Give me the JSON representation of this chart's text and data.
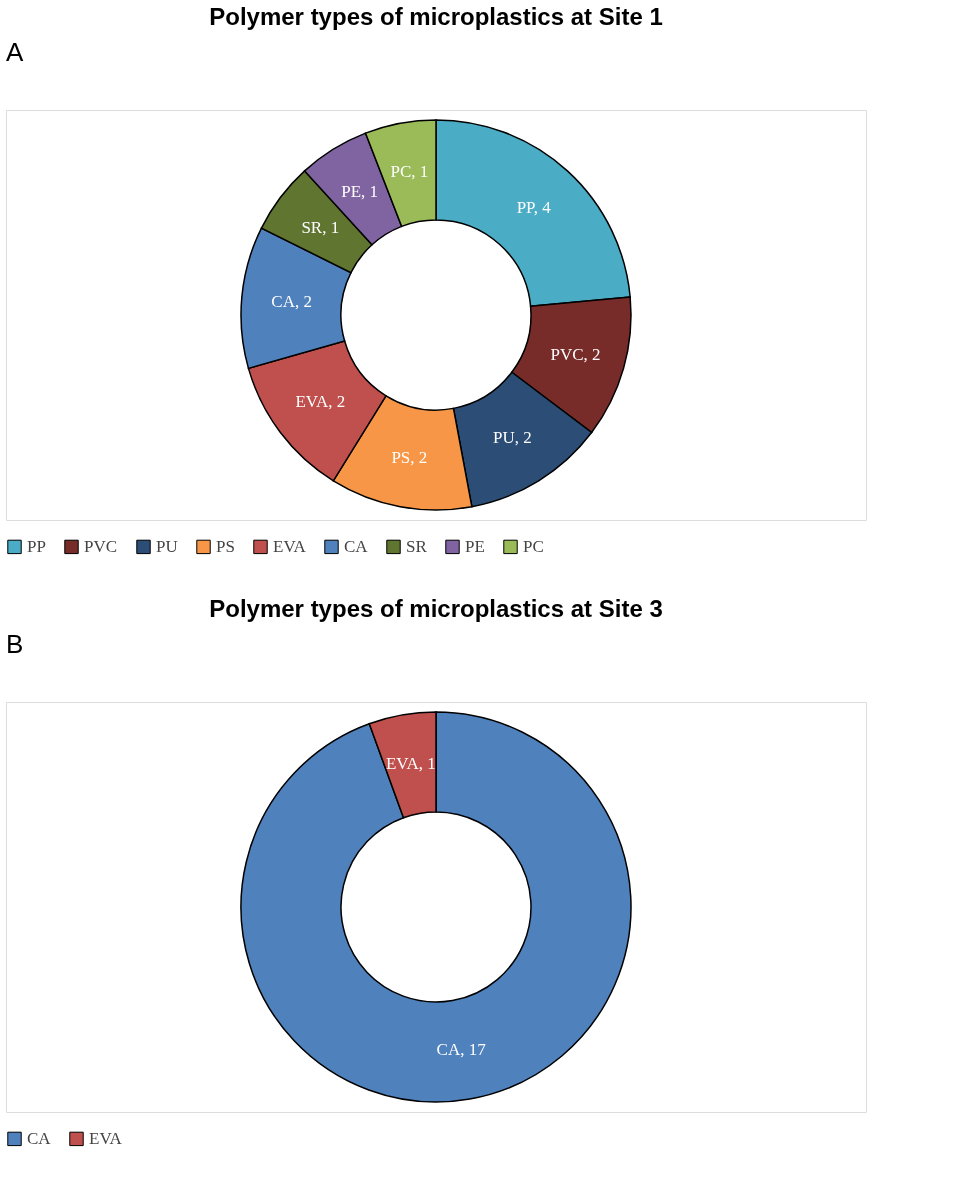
{
  "chart_data": [
    {
      "type": "donut",
      "title": "Polymer types of microplastics at Site 1",
      "annotations": [
        "A"
      ],
      "categories": [
        "PP",
        "PVC",
        "PU",
        "PS",
        "EVA",
        "CA",
        "SR",
        "PE",
        "PC"
      ],
      "values": [
        4,
        2,
        2,
        2,
        2,
        2,
        1,
        1,
        1
      ],
      "value_labels": [
        "PP, 4",
        "PVC, 2",
        "PU, 2",
        "PS, 2",
        "EVA, 2",
        "CA, 2",
        "SR, 1",
        "PE, 1",
        "PC, 1"
      ],
      "colors": [
        "#4bacc6",
        "#772c2a",
        "#2c4d75",
        "#f79646",
        "#c0504d",
        "#4f81bd",
        "#5f7530",
        "#8064a2",
        "#9bbb59"
      ],
      "legend": "bottom"
    },
    {
      "type": "donut",
      "title": "Polymer types of microplastics at Site 3",
      "annotations": [
        "B"
      ],
      "categories": [
        "CA",
        "EVA"
      ],
      "values": [
        17,
        1
      ],
      "value_labels": [
        "CA, 17",
        "EVA, 1"
      ],
      "colors": [
        "#4f81bd",
        "#c0504d"
      ],
      "legend": "bottom"
    }
  ]
}
